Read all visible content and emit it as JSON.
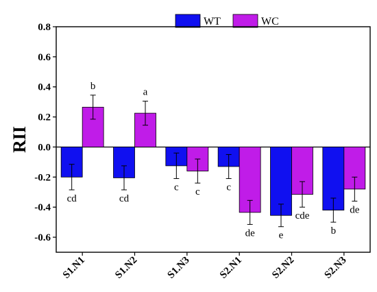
{
  "chart_data": {
    "type": "bar",
    "title": "",
    "xlabel": "",
    "ylabel": "RII",
    "ylim": [
      -0.7,
      0.8
    ],
    "yticks": [
      "-0.6",
      "-0.4",
      "-0.2",
      "0.0",
      "0.2",
      "0.4",
      "0.6",
      "0.8"
    ],
    "yticks_values": [
      -0.6,
      -0.4,
      -0.2,
      0.0,
      0.2,
      0.4,
      0.6,
      0.8
    ],
    "categories": [
      "S1.N1",
      "S1.N2",
      "S1.N3",
      "S2.N1",
      "S2.N2",
      "S2.N3"
    ],
    "legend_position": "top",
    "series": [
      {
        "name": "WT",
        "color": "#1010f0",
        "values": [
          -0.2,
          -0.205,
          -0.125,
          -0.13,
          -0.455,
          -0.42
        ],
        "errors": [
          0.085,
          0.08,
          0.085,
          0.08,
          0.075,
          0.08
        ],
        "letters": [
          "cd",
          "cd",
          "c",
          "c",
          "e",
          "b"
        ]
      },
      {
        "name": "WC",
        "color": "#c01ce8",
        "values": [
          0.265,
          0.225,
          -0.16,
          -0.435,
          -0.315,
          -0.28
        ],
        "errors": [
          0.08,
          0.08,
          0.08,
          0.08,
          0.085,
          0.08
        ],
        "letters": [
          "b",
          "a",
          "c",
          "de",
          "cde",
          "de"
        ]
      }
    ]
  }
}
